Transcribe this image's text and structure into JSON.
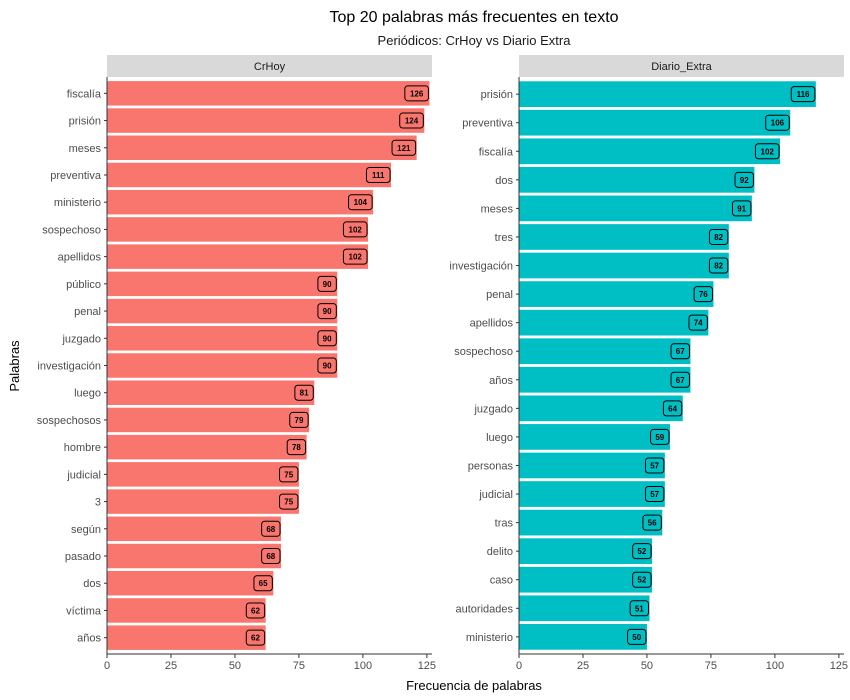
{
  "chart_data": {
    "type": "bar",
    "orientation": "horizontal",
    "title": "Top 20 palabras más frecuentes en texto",
    "subtitle": "Periódicos: CrHoy vs Diario Extra",
    "xlabel": "Frecuencia de palabras",
    "ylabel": "Palabras",
    "xlim": [
      0,
      127
    ],
    "xticks": [
      0,
      25,
      50,
      75,
      100,
      125
    ],
    "grid": false,
    "legend": "none",
    "panels": [
      {
        "name": "CrHoy",
        "color": "#F8766D",
        "categories": [
          "fiscalía",
          "prisión",
          "meses",
          "preventiva",
          "ministerio",
          "sospechoso",
          "apellidos",
          "público",
          "penal",
          "juzgado",
          "investigación",
          "luego",
          "sospechosos",
          "hombre",
          "judicial",
          "3",
          "según",
          "pasado",
          "dos",
          "víctima",
          "años"
        ],
        "values": [
          126,
          124,
          121,
          111,
          104,
          102,
          102,
          90,
          90,
          90,
          90,
          81,
          79,
          78,
          75,
          75,
          68,
          68,
          65,
          62,
          62
        ]
      },
      {
        "name": "Diario_Extra",
        "color": "#00BFC4",
        "categories": [
          "prisión",
          "preventiva",
          "fiscalía",
          "dos",
          "meses",
          "tres",
          "investigación",
          "penal",
          "apellidos",
          "sospechoso",
          "años",
          "juzgado",
          "luego",
          "personas",
          "judicial",
          "tras",
          "delito",
          "caso",
          "autoridades",
          "ministerio"
        ],
        "values": [
          116,
          106,
          102,
          92,
          91,
          82,
          82,
          76,
          74,
          67,
          67,
          64,
          59,
          57,
          57,
          56,
          52,
          52,
          51,
          50
        ]
      }
    ]
  }
}
